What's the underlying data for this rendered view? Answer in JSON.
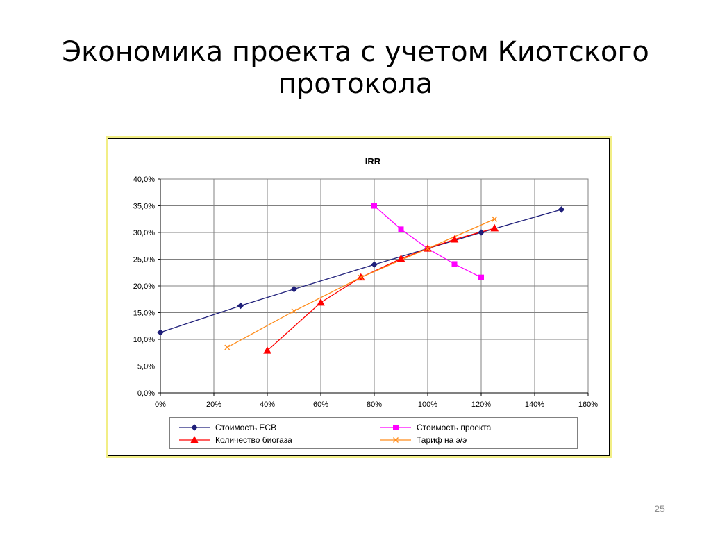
{
  "slide": {
    "title": "Экономика проекта с учетом Киотского протокола",
    "page_number": "25"
  },
  "chart_data": {
    "type": "line",
    "title": "IRR",
    "xlabel": "",
    "ylabel": "",
    "xlim": [
      0,
      160
    ],
    "ylim": [
      0,
      40
    ],
    "x_ticks": [
      "0%",
      "20%",
      "40%",
      "60%",
      "80%",
      "100%",
      "120%",
      "140%",
      "160%"
    ],
    "y_ticks": [
      "0,0%",
      "5,0%",
      "10,0%",
      "15,0%",
      "20,0%",
      "25,0%",
      "30,0%",
      "35,0%",
      "40,0%"
    ],
    "grid": true,
    "legend_position": "bottom",
    "series": [
      {
        "name": "Стоимость ЕСВ",
        "color": "#1f1f7a",
        "marker": "diamond",
        "points": [
          [
            0,
            11.3
          ],
          [
            30,
            16.3
          ],
          [
            50,
            19.4
          ],
          [
            80,
            24.0
          ],
          [
            100,
            27.0
          ],
          [
            120,
            30.0
          ],
          [
            150,
            34.3
          ]
        ]
      },
      {
        "name": "Стоимость проекта",
        "color": "#ff00ff",
        "marker": "square",
        "points": [
          [
            80,
            35.0
          ],
          [
            90,
            30.6
          ],
          [
            100,
            27.0
          ],
          [
            110,
            24.1
          ],
          [
            120,
            21.6
          ]
        ]
      },
      {
        "name": "Количество биогаза",
        "color": "#ff0000",
        "marker": "triangle",
        "points": [
          [
            40,
            7.9
          ],
          [
            60,
            16.9
          ],
          [
            75,
            21.6
          ],
          [
            90,
            25.1
          ],
          [
            100,
            27.0
          ],
          [
            110,
            28.7
          ],
          [
            125,
            30.8
          ]
        ]
      },
      {
        "name": "Тариф на э/э",
        "color": "#ff8c1a",
        "marker": "x",
        "points": [
          [
            25,
            8.5
          ],
          [
            50,
            15.3
          ],
          [
            75,
            21.6
          ],
          [
            100,
            27.0
          ],
          [
            125,
            32.5
          ]
        ]
      }
    ]
  }
}
